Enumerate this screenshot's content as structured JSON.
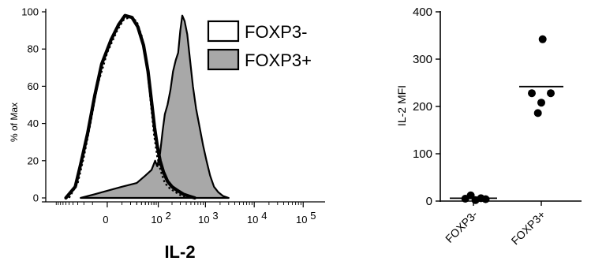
{
  "chart_data": [
    {
      "type": "area",
      "title": "",
      "xlabel": "IL-2",
      "ylabel": "% of Max",
      "x_scale": "biexponential",
      "x_ticks": [
        {
          "value": 0,
          "base": "0",
          "exp": ""
        },
        {
          "value": 100,
          "base": "10",
          "exp": "2"
        },
        {
          "value": 1000,
          "base": "10",
          "exp": "3"
        },
        {
          "value": 10000,
          "base": "10",
          "exp": "4"
        },
        {
          "value": 100000,
          "base": "10",
          "exp": "5"
        }
      ],
      "y_ticks": [
        "0",
        "20",
        "40",
        "60",
        "80",
        "100"
      ],
      "ylim": [
        0,
        100
      ],
      "legend_position": "top-right",
      "legend": [
        {
          "label": "FOXP3-",
          "fill": "#ffffff"
        },
        {
          "label": "FOXP3+",
          "fill": "#a8a8a8"
        }
      ],
      "series": [
        {
          "name": "FOXP3-",
          "style": "thick-solid",
          "points": [
            [
              -60,
              0
            ],
            [
              -35,
              6
            ],
            [
              -25,
              18
            ],
            [
              -15,
              35
            ],
            [
              -8,
              55
            ],
            [
              -3,
              72
            ],
            [
              2,
              85
            ],
            [
              7,
              93
            ],
            [
              13,
              98
            ],
            [
              22,
              97
            ],
            [
              32,
              92
            ],
            [
              45,
              82
            ],
            [
              58,
              68
            ],
            [
              70,
              52
            ],
            [
              82,
              38
            ],
            [
              95,
              28
            ],
            [
              110,
              20
            ],
            [
              130,
              14
            ],
            [
              160,
              9
            ],
            [
              200,
              6
            ],
            [
              260,
              4
            ],
            [
              350,
              2
            ],
            [
              450,
              1
            ],
            [
              600,
              0
            ]
          ]
        },
        {
          "name": "FOXP3- (dotted overlay)",
          "style": "dotted",
          "points": [
            [
              -50,
              0
            ],
            [
              -30,
              8
            ],
            [
              -20,
              22
            ],
            [
              -12,
              40
            ],
            [
              -6,
              60
            ],
            [
              0,
              78
            ],
            [
              6,
              90
            ],
            [
              12,
              96
            ],
            [
              20,
              97
            ],
            [
              30,
              95
            ],
            [
              42,
              86
            ],
            [
              55,
              70
            ],
            [
              68,
              50
            ],
            [
              80,
              34
            ],
            [
              95,
              22
            ],
            [
              115,
              14
            ],
            [
              140,
              8
            ],
            [
              180,
              5
            ],
            [
              240,
              3
            ],
            [
              320,
              1
            ],
            [
              420,
              0
            ]
          ]
        },
        {
          "name": "FOXP3+",
          "style": "filled",
          "points": [
            [
              -25,
              0
            ],
            [
              -8,
              2
            ],
            [
              10,
              6
            ],
            [
              30,
              8
            ],
            [
              50,
              12
            ],
            [
              70,
              15
            ],
            [
              85,
              20
            ],
            [
              95,
              17
            ],
            [
              110,
              24
            ],
            [
              125,
              36
            ],
            [
              140,
              45
            ],
            [
              160,
              50
            ],
            [
              185,
              58
            ],
            [
              210,
              68
            ],
            [
              240,
              74
            ],
            [
              270,
              78
            ],
            [
              300,
              90
            ],
            [
              330,
              98
            ],
            [
              370,
              95
            ],
            [
              420,
              88
            ],
            [
              480,
              74
            ],
            [
              550,
              60
            ],
            [
              640,
              48
            ],
            [
              760,
              38
            ],
            [
              900,
              28
            ],
            [
              1050,
              20
            ],
            [
              1250,
              12
            ],
            [
              1500,
              6
            ],
            [
              1850,
              3
            ],
            [
              2300,
              1
            ],
            [
              3000,
              0
            ]
          ]
        }
      ]
    },
    {
      "type": "scatter",
      "title": "",
      "xlabel": "",
      "ylabel": "IL-2 MFI",
      "ylim": [
        0,
        400
      ],
      "y_ticks": [
        "0",
        "100",
        "200",
        "300",
        "400"
      ],
      "categories": [
        "FOXP3-",
        "FOXP3+"
      ],
      "points": [
        {
          "category": "FOXP3-",
          "offset": -0.12,
          "y": 5
        },
        {
          "category": "FOXP3-",
          "offset": -0.04,
          "y": 12
        },
        {
          "category": "FOXP3-",
          "offset": 0.03,
          "y": 2
        },
        {
          "category": "FOXP3-",
          "offset": 0.11,
          "y": 6
        },
        {
          "category": "FOXP3-",
          "offset": 0.18,
          "y": 4
        },
        {
          "category": "FOXP3+",
          "offset": 0.02,
          "y": 342
        },
        {
          "category": "FOXP3+",
          "offset": -0.14,
          "y": 228
        },
        {
          "category": "FOXP3+",
          "offset": 0.14,
          "y": 228
        },
        {
          "category": "FOXP3+",
          "offset": 0.0,
          "y": 208
        },
        {
          "category": "FOXP3+",
          "offset": -0.05,
          "y": 186
        }
      ],
      "means": [
        {
          "category": "FOXP3-",
          "y": 6
        },
        {
          "category": "FOXP3+",
          "y": 242
        }
      ]
    }
  ]
}
